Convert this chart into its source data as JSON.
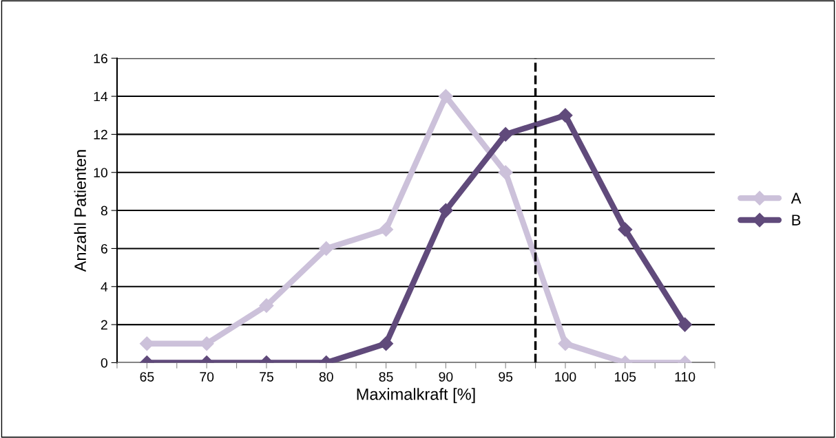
{
  "chart_data": {
    "type": "line",
    "xlabel": "Maximalkraft [%]",
    "ylabel": "Anzahl Patienten",
    "x": [
      65,
      70,
      75,
      80,
      85,
      90,
      95,
      100,
      105,
      110
    ],
    "series": [
      {
        "name": "A",
        "color": "#ccc1da",
        "values": [
          1,
          1,
          3,
          6,
          7,
          14,
          10,
          1,
          0,
          0
        ]
      },
      {
        "name": "B",
        "color": "#604a7b",
        "values": [
          0,
          0,
          0,
          0,
          1,
          8,
          12,
          13,
          7,
          2
        ]
      }
    ],
    "xlim": [
      62.5,
      112.5
    ],
    "xticks": [
      {
        "value": 62.5,
        "label": null
      },
      65,
      {
        "value": 67.5,
        "label": null
      },
      70,
      {
        "value": 72.5,
        "label": null
      },
      75,
      {
        "value": 77.5,
        "label": null
      },
      80,
      {
        "value": 82.5,
        "label": null
      },
      85,
      {
        "value": 87.5,
        "label": null
      },
      90,
      {
        "value": 92.5,
        "label": null
      },
      95,
      {
        "value": 97.5,
        "label": null
      },
      100,
      {
        "value": 102.5,
        "label": null
      },
      105,
      {
        "value": 107.5,
        "label": null
      },
      110,
      {
        "value": 112.5,
        "label": null
      }
    ],
    "ylim": [
      0,
      16
    ],
    "yticks": [
      0,
      2,
      4,
      6,
      8,
      10,
      12,
      14,
      16
    ],
    "grid": "y",
    "legend": "right",
    "marker": "diamond",
    "line_style": "solid",
    "ref_lines": [
      {
        "axis": "x",
        "value": 97.5,
        "color": "#000000",
        "line_style": "dashed"
      }
    ]
  }
}
